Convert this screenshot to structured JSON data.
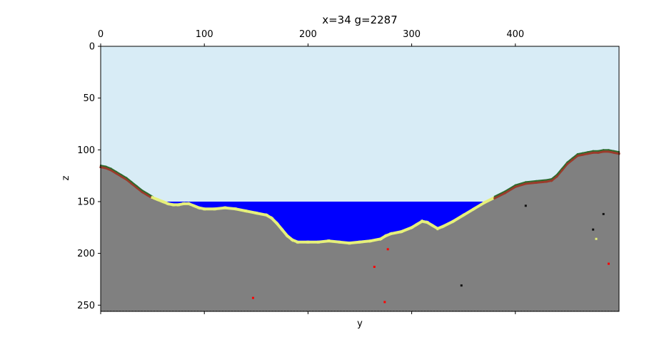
{
  "chart_data": {
    "type": "heatmap",
    "title": "x=34 g=2287",
    "xlabel": "y",
    "ylabel": "z",
    "xlim": [
      0,
      500
    ],
    "ylim": [
      256,
      0
    ],
    "x_ticks": [
      "0",
      "100",
      "200",
      "300",
      "400"
    ],
    "x_tick_values": [
      0,
      100,
      200,
      300,
      400
    ],
    "y_ticks": [
      "0",
      "50",
      "100",
      "150",
      "200",
      "250"
    ],
    "y_tick_values": [
      0,
      50,
      100,
      150,
      200,
      250
    ],
    "x_axis_position": "top",
    "water_level": 150,
    "colors": {
      "sky": "#d8ecf6",
      "water": "#0000ff",
      "stone": "#808080",
      "sand": "#e6f07a",
      "dirt": "#9b3a2a",
      "grass": "#2e6b2e",
      "ore": "#ff0000",
      "coal": "#111111",
      "bedrock": "#555555"
    },
    "terrain_profile": {
      "y": [
        0,
        5,
        10,
        15,
        20,
        25,
        30,
        35,
        40,
        45,
        50,
        55,
        60,
        65,
        70,
        75,
        80,
        85,
        90,
        95,
        100,
        110,
        120,
        130,
        140,
        150,
        160,
        165,
        170,
        175,
        180,
        185,
        190,
        200,
        210,
        220,
        230,
        240,
        250,
        260,
        270,
        275,
        280,
        290,
        300,
        305,
        310,
        315,
        320,
        325,
        330,
        340,
        350,
        360,
        370,
        380,
        390,
        400,
        410,
        420,
        430,
        435,
        440,
        445,
        450,
        455,
        460,
        465,
        470,
        475,
        480,
        485,
        490,
        495,
        500
      ],
      "surface_z": [
        115,
        116,
        118,
        121,
        124,
        127,
        131,
        135,
        139,
        142,
        145,
        147,
        149,
        151,
        152,
        152,
        151,
        151,
        153,
        155,
        156,
        156,
        155,
        156,
        158,
        160,
        162,
        165,
        170,
        176,
        182,
        186,
        188,
        188,
        188,
        187,
        188,
        189,
        188,
        187,
        185,
        182,
        180,
        178,
        174,
        171,
        168,
        169,
        172,
        175,
        173,
        168,
        162,
        156,
        150,
        145,
        140,
        134,
        131,
        130,
        129,
        128,
        124,
        118,
        112,
        108,
        104,
        103,
        102,
        101,
        101,
        100,
        100,
        101,
        102
      ]
    },
    "ore_points": [
      {
        "y": 277,
        "z": 196,
        "kind": "ore"
      },
      {
        "y": 264,
        "z": 213,
        "kind": "ore"
      },
      {
        "y": 147,
        "z": 243,
        "kind": "ore"
      },
      {
        "y": 274,
        "z": 247,
        "kind": "ore"
      },
      {
        "y": 490,
        "z": 210,
        "kind": "ore"
      },
      {
        "y": 410,
        "z": 154,
        "kind": "coal"
      },
      {
        "y": 485,
        "z": 162,
        "kind": "coal"
      },
      {
        "y": 475,
        "z": 177,
        "kind": "coal"
      },
      {
        "y": 348,
        "z": 231,
        "kind": "coal"
      },
      {
        "y": 478,
        "z": 186,
        "kind": "sand"
      }
    ]
  }
}
